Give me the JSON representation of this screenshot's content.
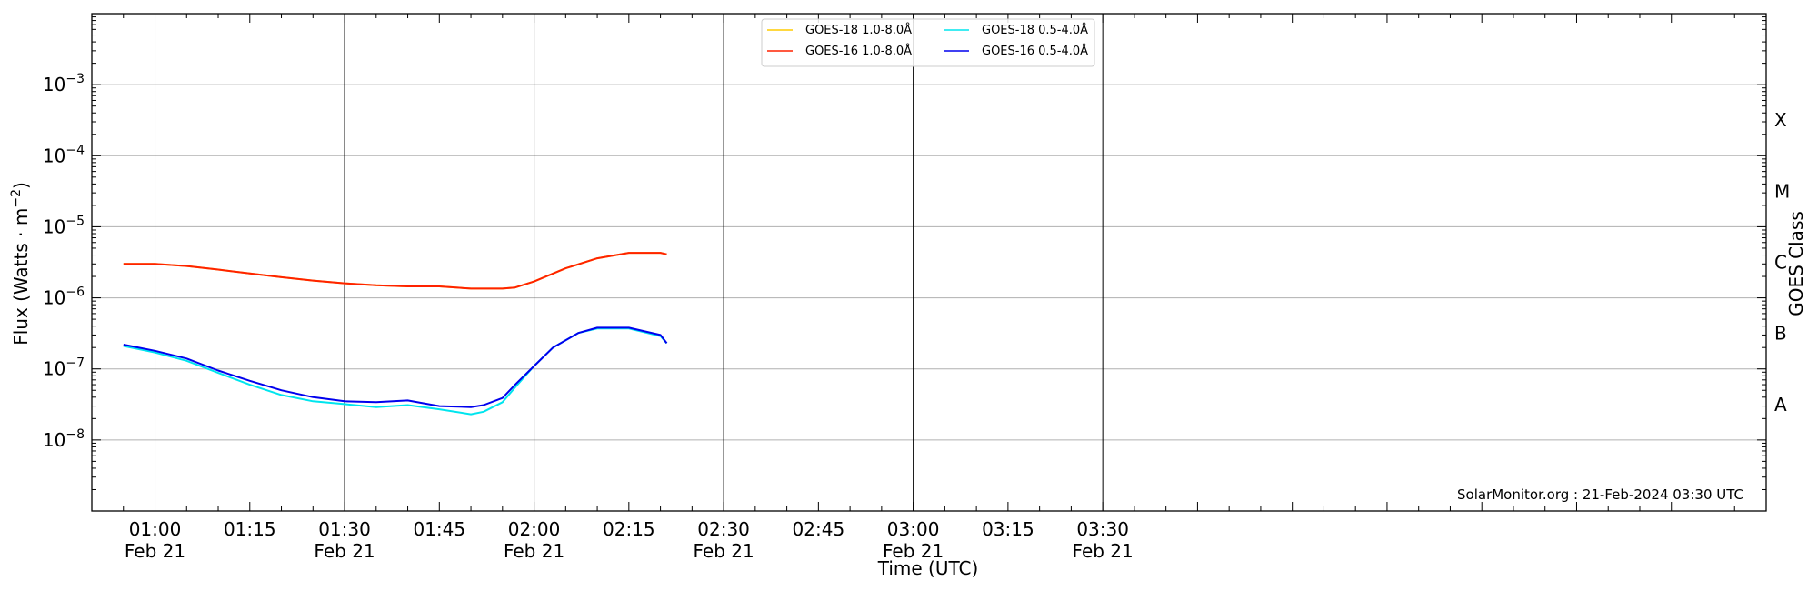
{
  "chart_data": {
    "type": "line",
    "xlabel": "Time (UTC)",
    "ylabel_main": "Flux (Watts · m",
    "ylabel_sup": "−2",
    "ylabel_close": ")",
    "right_label": "GOES Class",
    "annotation": "SolarMonitor.org : 21-Feb-2024 03:30 UTC",
    "scale": "log",
    "ylim": [
      1e-09,
      0.01
    ],
    "xlim_minutes": [
      -5,
      260
    ],
    "x_unit": "minutes after 00:55 UTC, 21-Feb-2024",
    "grid": "horizontal at decades, vertical at half-hours",
    "legend_position": "top-center",
    "x_major_ticks": [
      {
        "t": 5,
        "time": "01:00",
        "date": "Feb 21"
      },
      {
        "t": 20,
        "time": "01:15",
        "date": ""
      },
      {
        "t": 35,
        "time": "01:30",
        "date": "Feb 21"
      },
      {
        "t": 50,
        "time": "01:45",
        "date": ""
      },
      {
        "t": 65,
        "time": "02:00",
        "date": "Feb 21"
      },
      {
        "t": 80,
        "time": "02:15",
        "date": ""
      },
      {
        "t": 95,
        "time": "02:30",
        "date": "Feb 21"
      },
      {
        "t": 110,
        "time": "02:45",
        "date": ""
      },
      {
        "t": 125,
        "time": "03:00",
        "date": "Feb 21"
      },
      {
        "t": 140,
        "time": "03:15",
        "date": ""
      },
      {
        "t": 155,
        "time": "03:30",
        "date": "Feb 21"
      }
    ],
    "y_ticks": [
      {
        "exp": -8,
        "base": "10",
        "sup": "−8"
      },
      {
        "exp": -7,
        "base": "10",
        "sup": "−7"
      },
      {
        "exp": -6,
        "base": "10",
        "sup": "−6"
      },
      {
        "exp": -5,
        "base": "10",
        "sup": "−5"
      },
      {
        "exp": -4,
        "base": "10",
        "sup": "−4"
      },
      {
        "exp": -3,
        "base": "10",
        "sup": "−3"
      }
    ],
    "goes_classes": [
      {
        "label": "A",
        "exp": -7.5
      },
      {
        "label": "B",
        "exp": -6.5
      },
      {
        "label": "C",
        "exp": -5.5
      },
      {
        "label": "M",
        "exp": -4.5
      },
      {
        "label": "X",
        "exp": -3.5
      }
    ],
    "series": [
      {
        "name": "GOES-18 1.0-8.0Å",
        "color": "#ffcc00",
        "x": [
          0,
          5,
          10,
          15,
          20,
          25,
          30,
          35,
          40,
          45,
          50,
          55,
          60,
          62,
          65,
          70,
          75,
          80,
          85,
          86
        ],
        "y": [
          3e-06,
          3e-06,
          2.8e-06,
          2.5e-06,
          2.2e-06,
          1.95e-06,
          1.75e-06,
          1.6e-06,
          1.5e-06,
          1.45e-06,
          1.45e-06,
          1.35e-06,
          1.35e-06,
          1.4e-06,
          1.7e-06,
          2.6e-06,
          3.6e-06,
          4.3e-06,
          4.3e-06,
          4.1e-06
        ]
      },
      {
        "name": "GOES-16 1.0-8.0Å",
        "color": "#ff2200",
        "x": [
          0,
          5,
          10,
          15,
          20,
          25,
          30,
          35,
          40,
          45,
          50,
          55,
          60,
          62,
          65,
          70,
          75,
          80,
          85,
          86
        ],
        "y": [
          3e-06,
          3e-06,
          2.8e-06,
          2.5e-06,
          2.2e-06,
          1.95e-06,
          1.75e-06,
          1.6e-06,
          1.5e-06,
          1.45e-06,
          1.45e-06,
          1.35e-06,
          1.35e-06,
          1.4e-06,
          1.7e-06,
          2.6e-06,
          3.6e-06,
          4.3e-06,
          4.3e-06,
          4.1e-06
        ]
      },
      {
        "name": "GOES-18 0.5-4.0Å",
        "color": "#00e5ee",
        "x": [
          0,
          5,
          10,
          15,
          20,
          25,
          30,
          35,
          40,
          45,
          50,
          55,
          57,
          60,
          62,
          65,
          68,
          72,
          75,
          80,
          85,
          86
        ],
        "y": [
          2.1e-07,
          1.7e-07,
          1.3e-07,
          8.8e-08,
          6e-08,
          4.3e-08,
          3.5e-08,
          3.2e-08,
          2.9e-08,
          3.1e-08,
          2.7e-08,
          2.3e-08,
          2.5e-08,
          3.4e-08,
          5.5e-08,
          1.1e-07,
          2e-07,
          3.2e-07,
          3.7e-07,
          3.7e-07,
          2.9e-07,
          2.3e-07
        ]
      },
      {
        "name": "GOES-16 0.5-4.0Å",
        "color": "#0000ee",
        "x": [
          0,
          5,
          10,
          15,
          20,
          25,
          30,
          35,
          40,
          45,
          50,
          55,
          57,
          60,
          62,
          65,
          68,
          72,
          75,
          80,
          85,
          86
        ],
        "y": [
          2.2e-07,
          1.8e-07,
          1.4e-07,
          9.5e-08,
          6.8e-08,
          5e-08,
          4e-08,
          3.5e-08,
          3.4e-08,
          3.6e-08,
          3e-08,
          2.9e-08,
          3.1e-08,
          3.9e-08,
          6e-08,
          1.1e-07,
          2e-07,
          3.2e-07,
          3.8e-07,
          3.8e-07,
          3e-07,
          2.3e-07
        ]
      }
    ]
  }
}
